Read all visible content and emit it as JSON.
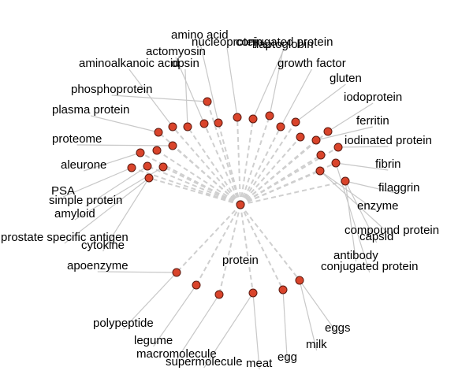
{
  "diagram": {
    "center_label": "protein",
    "colors": {
      "node_fill": "#d9442b",
      "node_stroke": "#5a1a10",
      "edge": "#cfcfcf",
      "leader": "#c8c8c8"
    },
    "labels": [
      "amino acid",
      "nucleoprotein",
      "conjugated protein",
      "haptoglobin",
      "actomyosin",
      "aminoalkanoic acid",
      "opsin",
      "growth factor",
      "gluten",
      "phosphoprotein",
      "iodoprotein",
      "plasma protein",
      "ferritin",
      "proteome",
      "iodinated protein",
      "aleurone",
      "fibrin",
      "PSA",
      "simple protein",
      "filaggrin",
      "enzyme",
      "amyloid",
      "compound protein",
      "prostate specific antigen",
      "capsid",
      "cytokine",
      "antibody",
      "conjugated protein",
      "apoenzyme",
      "polypeptide",
      "legume",
      "macromolecule",
      "supermolecule",
      "meat",
      "egg",
      "milk",
      "eggs"
    ]
  }
}
